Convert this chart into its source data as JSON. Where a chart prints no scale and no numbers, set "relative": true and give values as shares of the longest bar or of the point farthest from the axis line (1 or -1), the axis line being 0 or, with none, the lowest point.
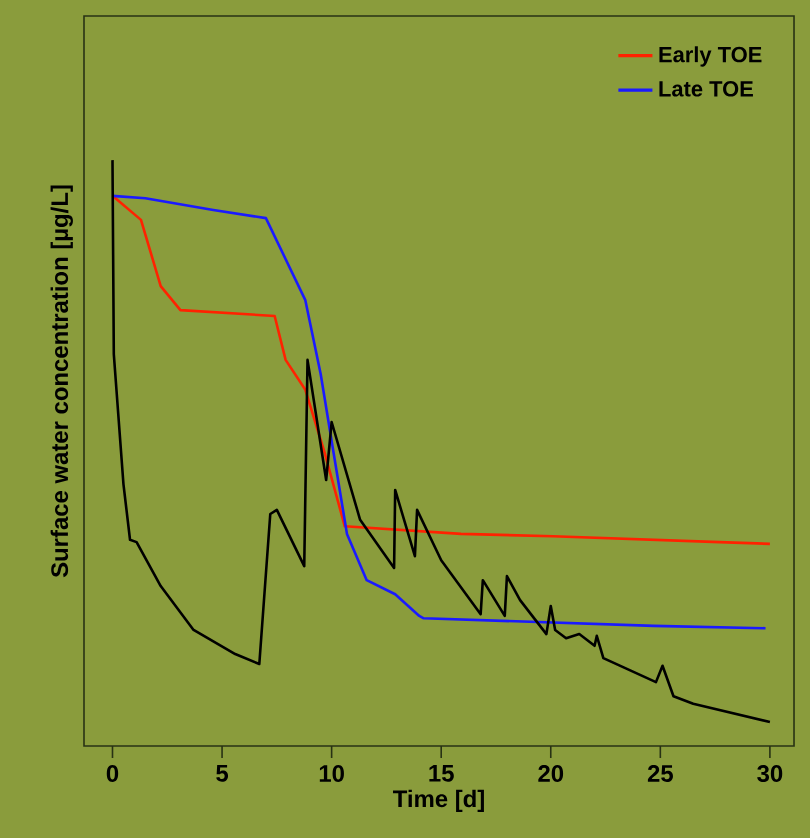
{
  "chart_data": {
    "type": "line",
    "relative": true,
    "xlabel": "Time [d]",
    "ylabel": "Surface water concentration [µg/L]",
    "xlim": [
      -1.3,
      31.1
    ],
    "xticks": [
      0,
      5,
      10,
      15,
      20,
      25,
      30
    ],
    "legend": "top right",
    "grid": false,
    "marker": "none",
    "line_style": "solid",
    "series": [
      {
        "name": "Early TOE",
        "color": "#ff2200",
        "x": [
          0,
          1.3,
          2.2,
          3.1,
          7.4,
          7.9,
          8.8,
          9.7,
          10.6,
          15.9,
          20.1,
          27.7,
          30
        ],
        "values": [
          0.939,
          0.898,
          0.785,
          0.744,
          0.734,
          0.659,
          0.608,
          0.498,
          0.375,
          0.362,
          0.358,
          0.348,
          0.345
        ]
      },
      {
        "name": "Late TOE",
        "color": "#1a1aff",
        "x": [
          0,
          1.5,
          4.6,
          7.0,
          8.8,
          9.5,
          10.1,
          10.7,
          11.6,
          12.9,
          14.0,
          14.2,
          24.7,
          29.8
        ],
        "values": [
          0.939,
          0.935,
          0.915,
          0.901,
          0.761,
          0.635,
          0.498,
          0.362,
          0.283,
          0.259,
          0.222,
          0.218,
          0.205,
          0.201
        ]
      },
      {
        "color": "#000000",
        "x": [
          0,
          0.06,
          0.5,
          0.8,
          1.1,
          2.2,
          3.7,
          5.6,
          6.7,
          7.2,
          7.5,
          8.75,
          8.9,
          9.75,
          10.0,
          11.3,
          12.85,
          12.9,
          13.8,
          13.9,
          15.0,
          16.8,
          16.9,
          17.9,
          18.0,
          18.6,
          19.8,
          20.0,
          20.2,
          20.7,
          21.3,
          22.0,
          22.1,
          22.4,
          24.8,
          25.1,
          25.6,
          26.5,
          30.0
        ],
        "values": [
          1.0,
          0.669,
          0.447,
          0.352,
          0.348,
          0.273,
          0.198,
          0.157,
          0.14,
          0.396,
          0.403,
          0.307,
          0.659,
          0.454,
          0.553,
          0.386,
          0.304,
          0.437,
          0.324,
          0.403,
          0.317,
          0.225,
          0.283,
          0.222,
          0.29,
          0.249,
          0.191,
          0.239,
          0.198,
          0.184,
          0.191,
          0.171,
          0.188,
          0.15,
          0.109,
          0.137,
          0.085,
          0.072,
          0.041
        ]
      }
    ]
  }
}
